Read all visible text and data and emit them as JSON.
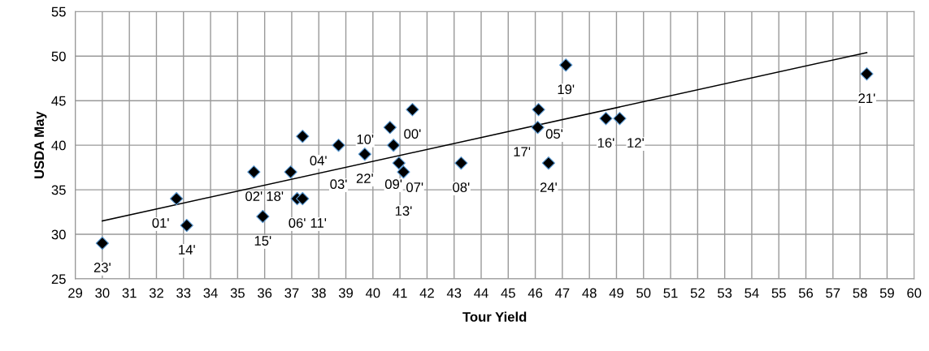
{
  "chart_data": {
    "type": "scatter",
    "xlabel": "Tour Yield",
    "ylabel": "USDA May",
    "series": [
      {
        "color": "#000000",
        "marker": "diamond",
        "x": [
          30.0,
          32.74,
          33.12,
          35.6,
          35.93,
          36.96,
          37.4,
          37.2,
          37.4,
          38.73,
          39.7,
          40.63,
          41.46,
          40.76,
          40.96,
          41.13,
          43.26,
          46.12,
          46.09,
          46.49,
          47.13,
          48.61,
          49.12,
          58.25
        ],
        "values": [
          29,
          34,
          31,
          37,
          32,
          37,
          41,
          34,
          34,
          40,
          39,
          42,
          44,
          40,
          38,
          37,
          38,
          44,
          42,
          38,
          49,
          43,
          43,
          48
        ]
      },
      {
        "type": "line",
        "color": "#000000",
        "marker": "none",
        "line_style": "solid",
        "x": [
          30.0,
          58.25
        ],
        "values": [
          31.5,
          50.4
        ]
      }
    ],
    "annotations": [
      {
        "text": "23'",
        "x": 30.0,
        "y": 29
      },
      {
        "text": "01'",
        "x": 32.74,
        "y": 34
      },
      {
        "text": "14'",
        "x": 33.12,
        "y": 31
      },
      {
        "text": "02'",
        "x": 35.6,
        "y": 37
      },
      {
        "text": "15'",
        "x": 35.93,
        "y": 32
      },
      {
        "text": "18'",
        "x": 36.96,
        "y": 37
      },
      {
        "text": "04'",
        "x": 37.4,
        "y": 41
      },
      {
        "text": "06'",
        "x": 37.2,
        "y": 34
      },
      {
        "text": "11'",
        "x": 37.4,
        "y": 34
      },
      {
        "text": "03'",
        "x": 38.73,
        "y": 40
      },
      {
        "text": "22'",
        "x": 39.7,
        "y": 39
      },
      {
        "text": "10'",
        "x": 40.63,
        "y": 42
      },
      {
        "text": "00'",
        "x": 41.46,
        "y": 44
      },
      {
        "text": "09'",
        "x": 40.76,
        "y": 40
      },
      {
        "text": "07'",
        "x": 40.96,
        "y": 38
      },
      {
        "text": "13'",
        "x": 41.13,
        "y": 37
      },
      {
        "text": "08'",
        "x": 43.26,
        "y": 38
      },
      {
        "text": "05'",
        "x": 46.12,
        "y": 44
      },
      {
        "text": "17'",
        "x": 46.09,
        "y": 42
      },
      {
        "text": "24'",
        "x": 46.49,
        "y": 38
      },
      {
        "text": "19'",
        "x": 47.13,
        "y": 49
      },
      {
        "text": "16'",
        "x": 48.61,
        "y": 43
      },
      {
        "text": "12'",
        "x": 49.12,
        "y": 43
      },
      {
        "text": "21'",
        "x": 58.25,
        "y": 48
      }
    ],
    "xlim": [
      29,
      60
    ],
    "xticks": [
      29,
      30,
      31,
      32,
      33,
      34,
      35,
      36,
      37,
      38,
      39,
      40,
      41,
      42,
      43,
      44,
      45,
      46,
      47,
      48,
      49,
      50,
      51,
      52,
      53,
      54,
      55,
      56,
      57,
      58,
      59,
      60
    ],
    "ylim": [
      25,
      55
    ],
    "yticks": [
      25,
      30,
      35,
      40,
      45,
      50,
      55
    ],
    "grid": true,
    "legend": false
  }
}
